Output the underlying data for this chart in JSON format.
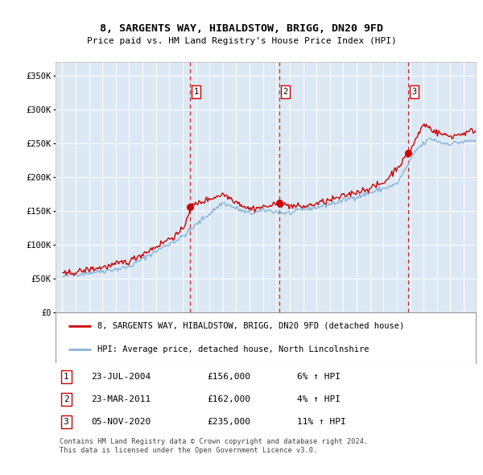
{
  "title": "8, SARGENTS WAY, HIBALDSTOW, BRIGG, DN20 9FD",
  "subtitle": "Price paid vs. HM Land Registry's House Price Index (HPI)",
  "plot_bg_color": "#dce9f5",
  "ylim": [
    0,
    370000
  ],
  "yticks": [
    0,
    50000,
    100000,
    150000,
    200000,
    250000,
    300000,
    350000
  ],
  "ytick_labels": [
    "£0",
    "£50K",
    "£100K",
    "£150K",
    "£200K",
    "£250K",
    "£300K",
    "£350K"
  ],
  "sale_dates_decimal": [
    2004.558,
    2011.225,
    2020.846
  ],
  "sale_prices": [
    156000,
    162000,
    235000
  ],
  "sale_labels": [
    "1",
    "2",
    "3"
  ],
  "hpi_line_color": "#8ab4d8",
  "price_line_color": "#cc0000",
  "vline_color": "#cc0000",
  "legend_label_price": "8, SARGENTS WAY, HIBALDSTOW, BRIGG, DN20 9FD (detached house)",
  "legend_label_hpi": "HPI: Average price, detached house, North Lincolnshire",
  "table_entries": [
    {
      "num": "1",
      "date": "23-JUL-2004",
      "price": "£156,000",
      "hpi": "6% ↑ HPI"
    },
    {
      "num": "2",
      "date": "23-MAR-2011",
      "price": "£162,000",
      "hpi": "4% ↑ HPI"
    },
    {
      "num": "3",
      "date": "05-NOV-2020",
      "price": "£235,000",
      "hpi": "11% ↑ HPI"
    }
  ],
  "footer": "Contains HM Land Registry data © Crown copyright and database right 2024.\nThis data is licensed under the Open Government Licence v3.0.",
  "xlim_start": 1994.5,
  "xlim_end": 2025.9
}
